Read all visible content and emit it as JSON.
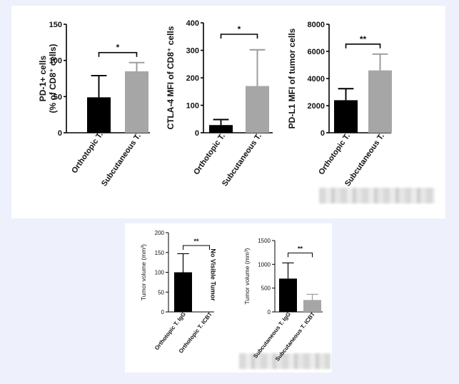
{
  "chart_data": [
    {
      "type": "bar",
      "categories": [
        "Orthotopic T.",
        "Subcutaneous T."
      ],
      "values": [
        49,
        85
      ],
      "errors": [
        30,
        12
      ],
      "colors": [
        "#000000",
        "#a6a6a6"
      ],
      "ylabel_lines": [
        "PD-1+ cells",
        "(% of CD8⁺ cells)"
      ],
      "ylim": [
        0,
        150
      ],
      "yticks": [
        0,
        50,
        100,
        150
      ],
      "significance": "*"
    },
    {
      "type": "bar",
      "categories": [
        "Orthotopic T.",
        "Subcutaneous T."
      ],
      "values": [
        28,
        170
      ],
      "errors": [
        20,
        132
      ],
      "colors": [
        "#000000",
        "#a6a6a6"
      ],
      "ylabel_lines": [
        "CTLA-4 MFI of CD8⁺ cells"
      ],
      "ylim": [
        0,
        400
      ],
      "yticks": [
        0,
        100,
        200,
        300,
        400
      ],
      "significance": "*"
    },
    {
      "type": "bar",
      "categories": [
        "Orthotopic T.",
        "Subcutaneous T."
      ],
      "values": [
        2400,
        4600
      ],
      "errors": [
        850,
        1200
      ],
      "colors": [
        "#000000",
        "#a6a6a6"
      ],
      "ylabel_lines": [
        "PD-L1 MFI of tumor cells"
      ],
      "ylim": [
        0,
        8000
      ],
      "yticks": [
        0,
        2000,
        4000,
        6000,
        8000
      ],
      "significance": "**"
    },
    {
      "type": "bar",
      "categories": [
        "Orthotopic T. IgG",
        "Orthotopic T. ICBT"
      ],
      "values": [
        100,
        0
      ],
      "errors": [
        47,
        0
      ],
      "colors": [
        "#000000",
        "#a6a6a6"
      ],
      "ylabel_lines": [
        "Tumor volume (mm³)"
      ],
      "ylim": [
        0,
        200
      ],
      "yticks": [
        0,
        50,
        100,
        150,
        200
      ],
      "significance": "**",
      "annotation": "No Visible Tumor"
    },
    {
      "type": "bar",
      "categories": [
        "Subcutaneous T. IgG",
        "Subcutaneous T. ICBT"
      ],
      "values": [
        700,
        250
      ],
      "errors": [
        330,
        120
      ],
      "colors": [
        "#000000",
        "#a6a6a6"
      ],
      "ylabel_lines": [
        "Tumor volume (mm³)"
      ],
      "ylim": [
        0,
        1500
      ],
      "yticks": [
        0,
        500,
        1000,
        1500
      ],
      "significance": "**"
    }
  ]
}
